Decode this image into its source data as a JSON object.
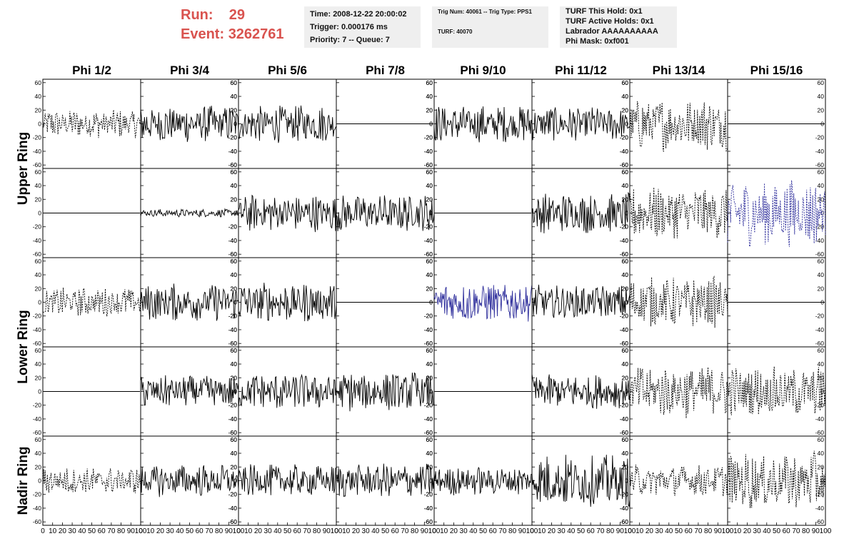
{
  "header": {
    "run_label": "Run:",
    "run_value": "29",
    "event_label": "Event:",
    "event_value": "3262761",
    "color": "#d9534f"
  },
  "timing_box": {
    "time": "Time: 2008-12-22 20:00:02",
    "trigger": "Trigger: 0.000176 ms",
    "priority": "Priority: 7 -- Queue: 7"
  },
  "trig_box": {
    "trig": "Trig Num: 40061 -- Trig Type: PPS1",
    "turf": "TURF: 40070"
  },
  "turf_box": {
    "this_hold": "TURF This Hold: 0x1",
    "active_holds": "TURF Active Holds: 0x1",
    "labrador": "Labrador AAAAAAAAAA",
    "phi_mask": "Phi Mask: 0xf001"
  },
  "chart_data": {
    "type": "line",
    "columns": [
      "Phi 1/2",
      "Phi 3/4",
      "Phi 5/6",
      "Phi 7/8",
      "Phi 9/10",
      "Phi 11/12",
      "Phi 13/14",
      "Phi 15/16"
    ],
    "row_labels": [
      {
        "label": "Upper Ring",
        "rows": [
          0,
          1
        ]
      },
      {
        "label": "Lower Ring",
        "rows": [
          2,
          3
        ]
      },
      {
        "label": "Nadir Ring",
        "rows": [
          4
        ]
      }
    ],
    "ylim": [
      -65,
      65
    ],
    "xlim": [
      0,
      100
    ],
    "y_ticks": [
      60,
      40,
      20,
      0,
      -20,
      -40,
      -60
    ],
    "x_tick_labels": [
      "0",
      "10",
      "20",
      "30",
      "40",
      "50",
      "60",
      "70",
      "80",
      "90",
      "100"
    ],
    "colors": {
      "solid": "#000000",
      "dashed": "#000000",
      "blue": "#2b2b9a"
    },
    "panels": [
      [
        {
          "style": "dashed",
          "amplitude": 22
        },
        {
          "style": "solid",
          "amplitude": 28
        },
        {
          "style": "solid",
          "amplitude": 28
        },
        {
          "style": "flat",
          "amplitude": 0
        },
        {
          "style": "solid",
          "amplitude": 28
        },
        {
          "style": "solid",
          "amplitude": 26
        },
        {
          "style": "dashed",
          "amplitude": 40
        },
        {
          "style": "flat",
          "amplitude": 0
        }
      ],
      [
        {
          "style": "flat",
          "amplitude": 0
        },
        {
          "style": "solid",
          "amplitude": 6
        },
        {
          "style": "solid",
          "amplitude": 28
        },
        {
          "style": "solid",
          "amplitude": 28
        },
        {
          "style": "flat",
          "amplitude": 0
        },
        {
          "style": "solid",
          "amplitude": 30
        },
        {
          "style": "dashed",
          "amplitude": 40
        },
        {
          "style": "blue-dashed",
          "amplitude": 50
        }
      ],
      [
        {
          "style": "dashed",
          "amplitude": 22
        },
        {
          "style": "solid",
          "amplitude": 28
        },
        {
          "style": "solid",
          "amplitude": 30
        },
        {
          "style": "flat",
          "amplitude": 0
        },
        {
          "style": "blue",
          "amplitude": 30
        },
        {
          "style": "solid",
          "amplitude": 26
        },
        {
          "style": "dashed",
          "amplitude": 38
        },
        {
          "style": "flat",
          "amplitude": 0
        }
      ],
      [
        {
          "style": "flat",
          "amplitude": 0
        },
        {
          "style": "solid",
          "amplitude": 24
        },
        {
          "style": "solid",
          "amplitude": 28
        },
        {
          "style": "solid",
          "amplitude": 30
        },
        {
          "style": "flat",
          "amplitude": 0
        },
        {
          "style": "solid",
          "amplitude": 26
        },
        {
          "style": "dashed",
          "amplitude": 40
        },
        {
          "style": "dashed",
          "amplitude": 38
        }
      ],
      [
        {
          "style": "dashed",
          "amplitude": 20
        },
        {
          "style": "solid",
          "amplitude": 24
        },
        {
          "style": "solid",
          "amplitude": 24
        },
        {
          "style": "solid",
          "amplitude": 26
        },
        {
          "style": "solid",
          "amplitude": 22
        },
        {
          "style": "solid",
          "amplitude": 40
        },
        {
          "style": "dashed",
          "amplitude": 24
        },
        {
          "style": "dashed",
          "amplitude": 44
        }
      ]
    ]
  }
}
